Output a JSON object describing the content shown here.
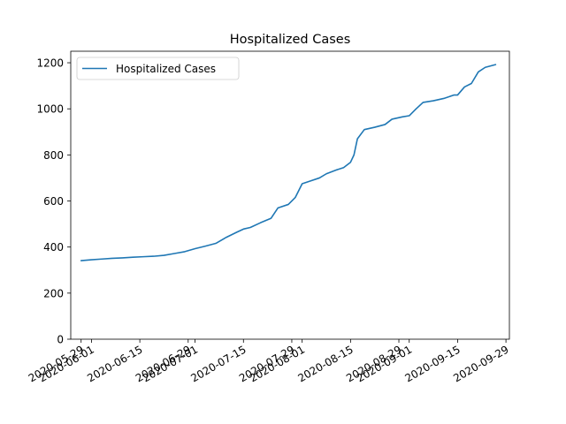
{
  "chart_data": {
    "type": "line",
    "title": "Hospitalized Cases",
    "xlabel": "",
    "ylabel": "",
    "xlim": [
      "2020-05-26",
      "2020-09-30"
    ],
    "ylim": [
      0,
      1250
    ],
    "grid": false,
    "legend_position": "top-left",
    "x_ticks": [
      "2020-05-29",
      "2020-06-01",
      "2020-06-15",
      "2020-06-29",
      "2020-07-01",
      "2020-07-15",
      "2020-07-29",
      "2020-08-01",
      "2020-08-15",
      "2020-08-29",
      "2020-09-01",
      "2020-09-15",
      "2020-09-29"
    ],
    "y_ticks": [
      0,
      200,
      400,
      600,
      800,
      1000,
      1200
    ],
    "series": [
      {
        "name": "Hospitalized Cases",
        "color": "#1f77b4",
        "x": [
          "2020-05-29",
          "2020-06-01",
          "2020-06-04",
          "2020-06-07",
          "2020-06-10",
          "2020-06-13",
          "2020-06-16",
          "2020-06-19",
          "2020-06-22",
          "2020-06-25",
          "2020-06-28",
          "2020-07-01",
          "2020-07-04",
          "2020-07-07",
          "2020-07-10",
          "2020-07-13",
          "2020-07-15",
          "2020-07-17",
          "2020-07-20",
          "2020-07-23",
          "2020-07-25",
          "2020-07-28",
          "2020-07-30",
          "2020-08-01",
          "2020-08-03",
          "2020-08-06",
          "2020-08-08",
          "2020-08-11",
          "2020-08-13",
          "2020-08-15",
          "2020-08-16",
          "2020-08-17",
          "2020-08-19",
          "2020-08-22",
          "2020-08-25",
          "2020-08-27",
          "2020-08-30",
          "2020-09-01",
          "2020-09-03",
          "2020-09-05",
          "2020-09-08",
          "2020-09-11",
          "2020-09-14",
          "2020-09-15",
          "2020-09-17",
          "2020-09-19",
          "2020-09-21",
          "2020-09-23",
          "2020-09-26"
        ],
        "y": [
          341,
          345,
          348,
          351,
          353,
          356,
          358,
          360,
          364,
          372,
          380,
          393,
          404,
          416,
          442,
          464,
          478,
          485,
          506,
          525,
          570,
          585,
          615,
          675,
          685,
          700,
          718,
          735,
          745,
          768,
          800,
          870,
          910,
          920,
          932,
          955,
          965,
          970,
          1000,
          1028,
          1035,
          1045,
          1060,
          1060,
          1095,
          1110,
          1160,
          1180,
          1192
        ]
      }
    ]
  }
}
